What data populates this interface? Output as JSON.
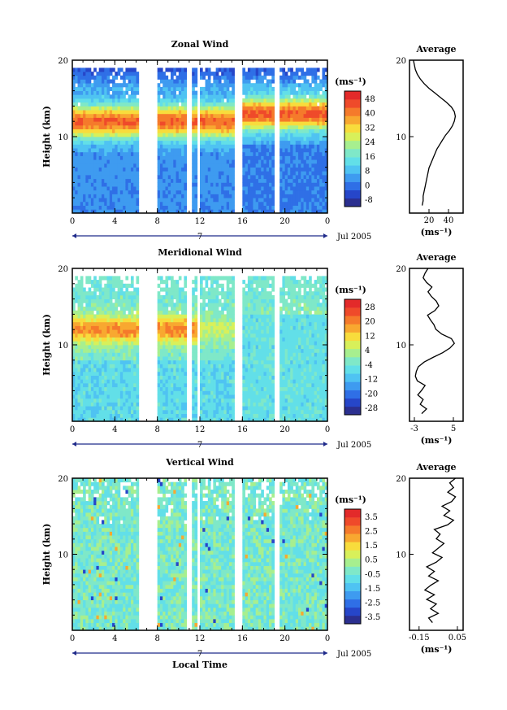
{
  "chart_data": [
    {
      "type": "heatmap",
      "title": "Zonal Wind",
      "ylabel": "Height (km)",
      "yticks": [
        "20",
        "10"
      ],
      "xticks": [
        "0",
        "4",
        "8",
        "12",
        "16",
        "20",
        "0"
      ],
      "day_label": "7",
      "date_label": "Jul 2005",
      "colorbar_unit": "(ms⁻¹)",
      "colorbar_ticks": [
        "48",
        "40",
        "32",
        "24",
        "16",
        "8",
        "0",
        "-8"
      ],
      "colorbar_colors": [
        "#2b2f8f",
        "#2646c9",
        "#2f6fe6",
        "#3e9bf0",
        "#4fc3f2",
        "#62dfe8",
        "#7fe8c8",
        "#a7ef8f",
        "#d8f05a",
        "#f8dc3c",
        "#f8a830",
        "#f57a2b",
        "#ef4a2a",
        "#e32a2a"
      ],
      "avg_title": "Average",
      "avg_xticks": [
        "20",
        "40"
      ],
      "avg_xlabel": "(ms⁻¹)",
      "avg_yticks": [
        "20",
        "10"
      ],
      "profile_x": [
        13,
        14,
        14,
        15,
        16,
        17,
        18,
        19,
        20,
        22,
        24,
        26,
        28,
        31,
        34,
        37,
        41,
        44,
        46,
        47,
        46,
        43,
        38,
        32,
        26,
        20,
        15,
        11,
        8,
        6,
        5,
        4
      ],
      "profile_xlim": [
        0,
        55
      ]
    },
    {
      "type": "heatmap",
      "title": "Meridional Wind",
      "ylabel": "Height (km)",
      "yticks": [
        "20",
        "10"
      ],
      "xticks": [
        "0",
        "4",
        "8",
        "12",
        "16",
        "20",
        "0"
      ],
      "day_label": "7",
      "date_label": "Jul 2005",
      "colorbar_unit": "(ms⁻¹)",
      "colorbar_ticks": [
        "28",
        "20",
        "12",
        "4",
        "-4",
        "-12",
        "-20",
        "-28"
      ],
      "colorbar_colors": [
        "#2b2f8f",
        "#2646c9",
        "#2f6fe6",
        "#3e9bf0",
        "#4fc3f2",
        "#62dfe8",
        "#7fe8c8",
        "#a7ef8f",
        "#d8f05a",
        "#f8dc3c",
        "#f8a830",
        "#f57a2b",
        "#ef4a2a",
        "#e32a2a"
      ],
      "avg_title": "Average",
      "avg_xticks": [
        "-3",
        "5"
      ],
      "avg_xlabel": "(ms⁻¹)",
      "avg_yticks": [
        "20",
        "10"
      ],
      "profile_x": [
        -1.5,
        -0.5,
        -1.8,
        -1.2,
        -2.3,
        -1.5,
        -0.8,
        -2.4,
        -2.8,
        -2.6,
        -2.2,
        -1,
        0.8,
        2.8,
        4.3,
        5.2,
        4.6,
        2.6,
        1.4,
        1,
        0.3,
        -0.3,
        1.2,
        2,
        1.5,
        0.5,
        -0.2,
        0.6,
        -0.5,
        -1.2,
        -0.8,
        -0.2
      ],
      "profile_xlim": [
        -4,
        7
      ]
    },
    {
      "type": "heatmap",
      "title": "Vertical Wind",
      "ylabel": "Height (km)",
      "xlabel": "Local Time",
      "yticks": [
        "20",
        "10"
      ],
      "xticks": [
        "0",
        "4",
        "8",
        "12",
        "16",
        "20",
        "0"
      ],
      "day_label": "7",
      "date_label": "Jul 2005",
      "colorbar_unit": "(ms⁻¹)",
      "colorbar_ticks": [
        "3.5",
        "2.5",
        "1.5",
        "0.5",
        "-0.5",
        "-1.5",
        "-2.5",
        "-3.5"
      ],
      "colorbar_colors": [
        "#2b2f8f",
        "#2646c9",
        "#2f6fe6",
        "#3e9bf0",
        "#4fc3f2",
        "#62dfe8",
        "#7fe8c8",
        "#a7ef8f",
        "#d8f05a",
        "#f8dc3c",
        "#f8a830",
        "#f57a2b",
        "#ef4a2a",
        "#e32a2a"
      ],
      "avg_title": "Average",
      "avg_xticks": [
        "-0.15",
        "0.05"
      ],
      "avg_xlabel": "(ms⁻¹)",
      "avg_yticks": [
        "20",
        "10"
      ],
      "profile_x": [
        -0.08,
        -0.1,
        -0.05,
        -0.09,
        -0.06,
        -0.11,
        -0.07,
        -0.12,
        -0.09,
        -0.05,
        -0.1,
        -0.07,
        -0.11,
        -0.06,
        -0.03,
        -0.08,
        -0.05,
        -0.02,
        -0.06,
        -0.04,
        -0.07,
        0,
        0.03,
        -0.02,
        0.01,
        -0.03,
        0.02,
        0.04,
        0,
        0.03,
        0.01,
        0.04
      ],
      "profile_xlim": [
        -0.2,
        0.08
      ]
    }
  ]
}
